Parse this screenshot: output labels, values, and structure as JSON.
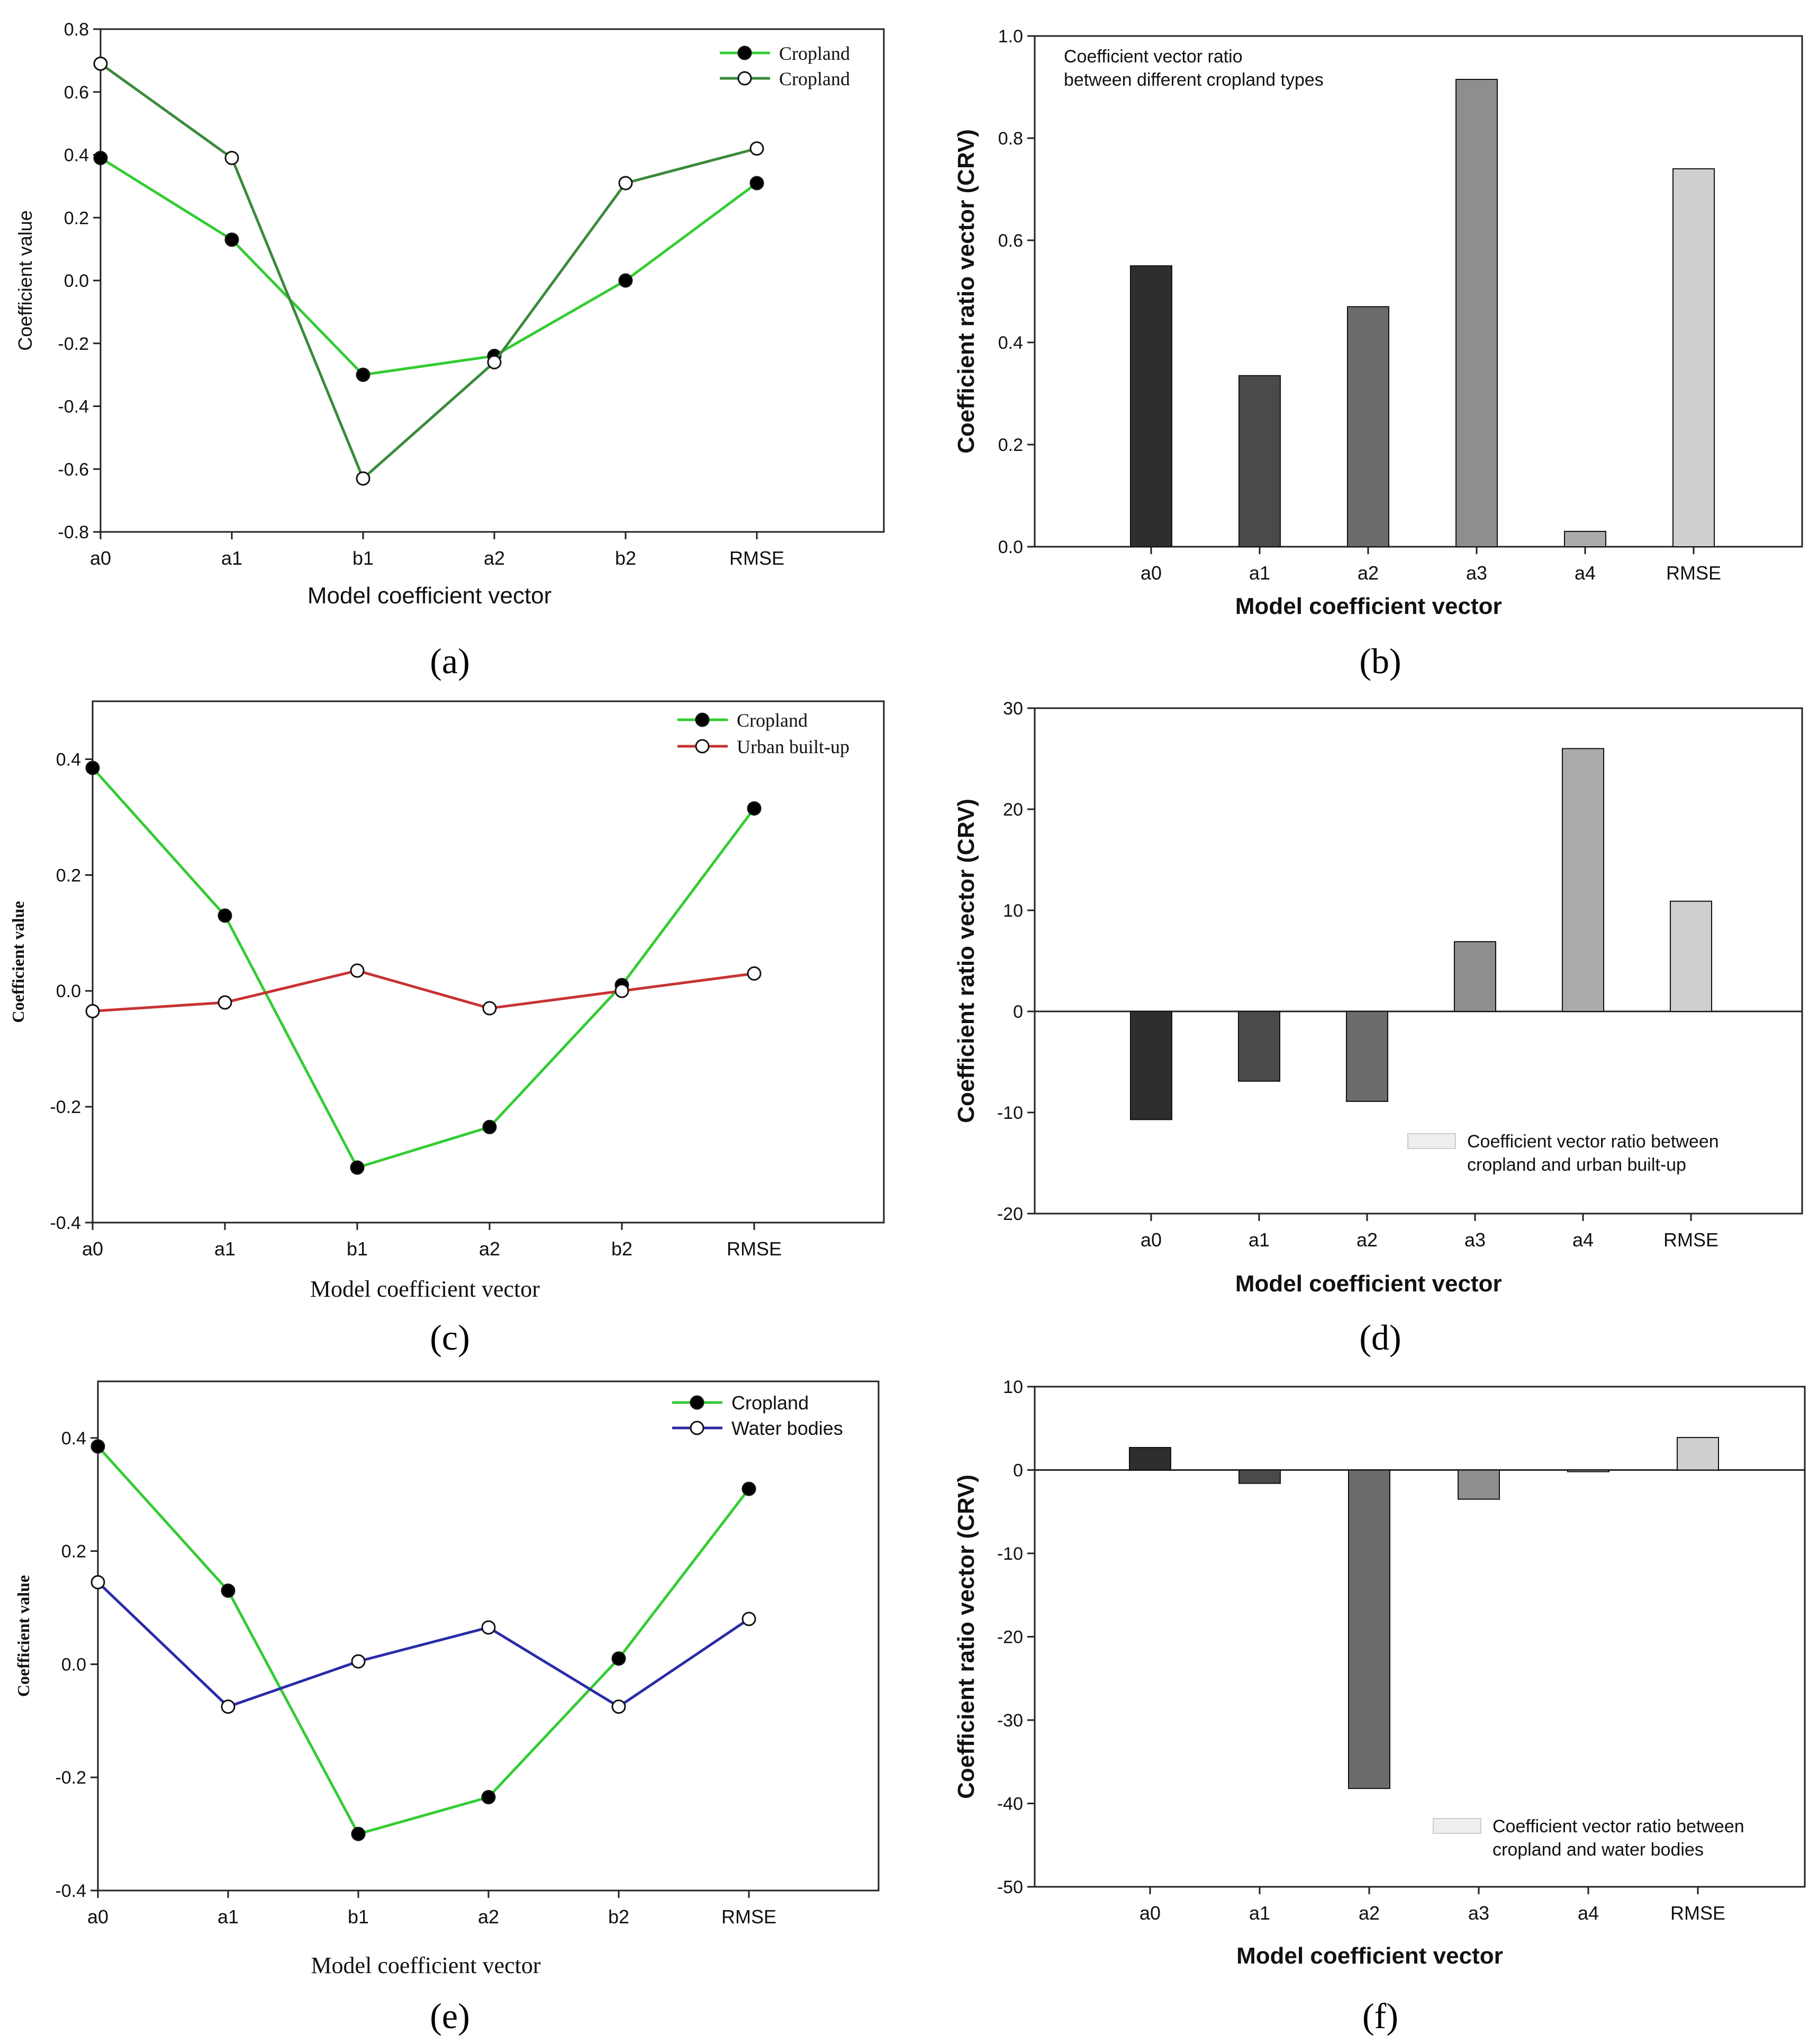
{
  "panel_labels": [
    "(a)",
    "(b)",
    "(c)",
    "(d)",
    "(e)",
    "(f)"
  ],
  "chart_data": [
    {
      "panel": "a",
      "type": "line",
      "categories": [
        "a0",
        "a1",
        "b1",
        "a2",
        "b2",
        "RMSE"
      ],
      "xlabel": "Model coefficient vector",
      "ylabel": "Coefficient value",
      "ylim": [
        -0.8,
        0.8
      ],
      "yticks": [
        "-0.8",
        "-0.6",
        "-0.4",
        "-0.2",
        "0.0",
        "0.2",
        "0.4",
        "0.6",
        "0.8"
      ],
      "legend_position": "top-right",
      "series": [
        {
          "name": "Cropland",
          "color": "#33cc33",
          "marker": "filled",
          "values": [
            0.39,
            0.13,
            -0.3,
            -0.24,
            0.0,
            0.31
          ]
        },
        {
          "name": "Cropland",
          "color": "#3a8a3a",
          "marker": "open",
          "values": [
            0.69,
            0.39,
            -0.63,
            -0.26,
            0.31,
            0.42
          ]
        }
      ]
    },
    {
      "panel": "b",
      "type": "bar",
      "categories": [
        "a0",
        "a1",
        "a2",
        "a3",
        "a4",
        "RMSE"
      ],
      "values": [
        0.55,
        0.335,
        0.47,
        0.915,
        0.03,
        0.74
      ],
      "colors": [
        "#2e2e2e",
        "#4a4a4a",
        "#6b6b6b",
        "#8e8e8e",
        "#ababab",
        "#cfcfcf"
      ],
      "xlabel": "Model coefficient vector",
      "ylabel": "Coefficient  ratio vector (CRV)",
      "ylim": [
        0,
        1.0
      ],
      "yticks": [
        "0.0",
        "0.2",
        "0.4",
        "0.6",
        "0.8",
        "1.0"
      ],
      "annotation": [
        "Coefficient vector ratio",
        "between different cropland types"
      ]
    },
    {
      "panel": "c",
      "type": "line",
      "categories": [
        "a0",
        "a1",
        "b1",
        "a2",
        "b2",
        "RMSE"
      ],
      "xlabel": "Model coefficient vector",
      "ylabel": "Coefficient value",
      "ylim": [
        -0.4,
        0.5
      ],
      "yticks": [
        "-0.4",
        "-0.2",
        "0.0",
        "0.2",
        "0.4"
      ],
      "legend_position": "top-right",
      "series": [
        {
          "name": "Cropland",
          "color": "#33cc33",
          "marker": "filled",
          "values": [
            0.385,
            0.13,
            -0.305,
            -0.235,
            0.01,
            0.315
          ]
        },
        {
          "name": "Urban built-up",
          "color": "#c83232",
          "marker": "open",
          "values": [
            -0.035,
            -0.02,
            0.035,
            -0.03,
            0.0,
            0.03
          ]
        }
      ]
    },
    {
      "panel": "d",
      "type": "bar",
      "categories": [
        "a0",
        "a1",
        "a2",
        "a3",
        "a4",
        "RMSE"
      ],
      "values": [
        -10.7,
        -6.9,
        -8.9,
        6.9,
        26.0,
        10.9
      ],
      "colors": [
        "#2e2e2e",
        "#4a4a4a",
        "#6b6b6b",
        "#8e8e8e",
        "#ababab",
        "#cfcfcf"
      ],
      "xlabel": "Model coefficient vector",
      "ylabel": "Coefficient  ratio vector (CRV)",
      "ylim": [
        -20,
        30
      ],
      "yticks": [
        "-20",
        "-10",
        "0",
        "10",
        "20",
        "30"
      ],
      "legend": [
        "Coefficient vector ratio  between",
        "cropland and urban built-up"
      ]
    },
    {
      "panel": "e",
      "type": "line",
      "categories": [
        "a0",
        "a1",
        "b1",
        "a2",
        "b2",
        "RMSE"
      ],
      "xlabel": "Model coefficient vector",
      "ylabel": "Coefficient value",
      "ylim": [
        -0.4,
        0.5
      ],
      "yticks": [
        "-0.4",
        "-0.2",
        "0.0",
        "0.2",
        "0.4"
      ],
      "legend_position": "top-right",
      "series": [
        {
          "name": "Cropland",
          "color": "#33cc33",
          "marker": "filled",
          "values": [
            0.385,
            0.13,
            -0.3,
            -0.235,
            0.01,
            0.31
          ]
        },
        {
          "name": "Water bodies",
          "color": "#2a2aa8",
          "marker": "open",
          "values": [
            0.145,
            -0.075,
            0.005,
            0.065,
            -0.075,
            0.08
          ]
        }
      ]
    },
    {
      "panel": "f",
      "type": "bar",
      "categories": [
        "a0",
        "a1",
        "a2",
        "a3",
        "a4",
        "RMSE"
      ],
      "values": [
        2.7,
        -1.6,
        -38.2,
        -3.5,
        -0.2,
        3.9
      ],
      "colors": [
        "#2e2e2e",
        "#4a4a4a",
        "#6b6b6b",
        "#8e8e8e",
        "#ababab",
        "#cfcfcf"
      ],
      "xlabel": "Model coefficient vector",
      "ylabel": "Coefficient  ratio vector (CRV)",
      "ylim": [
        -50,
        10
      ],
      "yticks": [
        "-50",
        "-40",
        "-30",
        "-20",
        "-10",
        "0",
        "10"
      ],
      "legend": [
        "Coefficient vector ratio  between",
        "cropland and water bodies"
      ]
    }
  ]
}
